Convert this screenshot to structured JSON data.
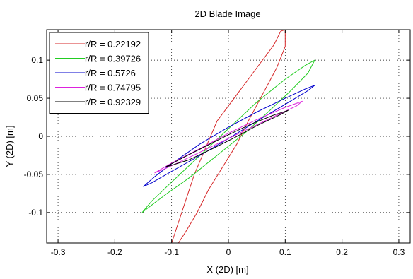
{
  "chart_data": {
    "type": "line",
    "title": "2D Blade Image",
    "xlabel": "X (2D) [m]",
    "ylabel": "Y (2D) [m]",
    "xlim": [
      -0.32,
      0.32
    ],
    "ylim": [
      -0.14,
      0.14
    ],
    "xticks": [
      -0.3,
      -0.2,
      -0.1,
      0,
      0.1,
      0.2,
      0.3
    ],
    "xtick_labels": [
      "-0.3",
      "-0.2",
      "-0.1",
      "0",
      "0.1",
      "0.2",
      "0.3"
    ],
    "yticks": [
      -0.1,
      -0.05,
      0,
      0.05,
      0.1
    ],
    "ytick_labels": [
      "-0.1",
      "-0.05",
      "0",
      "0.05",
      "0.1"
    ],
    "grid": true,
    "legend_position": "top-left",
    "series": [
      {
        "name": "r/R = 0.22192",
        "color": "#d62728",
        "points": [
          [
            -0.1,
            -0.14
          ],
          [
            -0.06,
            -0.05
          ],
          [
            -0.02,
            0.02
          ],
          [
            0.02,
            0.06
          ],
          [
            0.055,
            0.095
          ],
          [
            0.08,
            0.12
          ],
          [
            0.092,
            0.138
          ],
          [
            0.1,
            0.14
          ],
          [
            0.1,
            0.118
          ],
          [
            0.085,
            0.09
          ],
          [
            0.06,
            0.055
          ],
          [
            0.035,
            0.02
          ],
          [
            0.015,
            -0.01
          ],
          [
            -0.01,
            -0.04
          ],
          [
            -0.035,
            -0.07
          ],
          [
            -0.055,
            -0.1
          ],
          [
            -0.075,
            -0.125
          ],
          [
            -0.088,
            -0.14
          ]
        ]
      },
      {
        "name": "r/R = 0.39726",
        "color": "#22cc22",
        "points": [
          [
            -0.152,
            -0.1
          ],
          [
            -0.135,
            -0.085
          ],
          [
            -0.1,
            -0.06
          ],
          [
            -0.05,
            -0.025
          ],
          [
            0,
            0.01
          ],
          [
            0.05,
            0.045
          ],
          [
            0.1,
            0.075
          ],
          [
            0.135,
            0.093
          ],
          [
            0.152,
            0.1
          ],
          [
            0.14,
            0.083
          ],
          [
            0.11,
            0.06
          ],
          [
            0.07,
            0.032
          ],
          [
            0.03,
            0.005
          ],
          [
            -0.02,
            -0.025
          ],
          [
            -0.07,
            -0.055
          ],
          [
            -0.11,
            -0.076
          ],
          [
            -0.14,
            -0.093
          ],
          [
            -0.152,
            -0.1
          ]
        ]
      },
      {
        "name": "r/R = 0.5726",
        "color": "#0000cc",
        "points": [
          [
            -0.15,
            -0.066
          ],
          [
            -0.13,
            -0.053
          ],
          [
            -0.1,
            -0.036
          ],
          [
            -0.05,
            -0.01
          ],
          [
            0,
            0.012
          ],
          [
            0.05,
            0.032
          ],
          [
            0.1,
            0.05
          ],
          [
            0.135,
            0.062
          ],
          [
            0.152,
            0.067
          ],
          [
            0.14,
            0.06
          ],
          [
            0.1,
            0.042
          ],
          [
            0.05,
            0.02
          ],
          [
            0,
            -0.003
          ],
          [
            -0.05,
            -0.025
          ],
          [
            -0.1,
            -0.046
          ],
          [
            -0.135,
            -0.061
          ],
          [
            -0.15,
            -0.066
          ]
        ]
      },
      {
        "name": "r/R = 0.74795",
        "color": "#dd22dd",
        "points": [
          [
            -0.13,
            -0.048
          ],
          [
            -0.1,
            -0.035
          ],
          [
            -0.05,
            -0.016
          ],
          [
            0,
            0.004
          ],
          [
            0.05,
            0.022
          ],
          [
            0.1,
            0.038
          ],
          [
            0.13,
            0.046
          ],
          [
            0.12,
            0.04
          ],
          [
            0.08,
            0.026
          ],
          [
            0.03,
            0.008
          ],
          [
            -0.02,
            -0.01
          ],
          [
            -0.07,
            -0.028
          ],
          [
            -0.11,
            -0.042
          ],
          [
            -0.13,
            -0.048
          ]
        ]
      },
      {
        "name": "r/R = 0.92329",
        "color": "#000000",
        "points": [
          [
            -0.11,
            -0.04
          ],
          [
            -0.08,
            -0.028
          ],
          [
            -0.04,
            -0.013
          ],
          [
            0,
            0.002
          ],
          [
            0.04,
            0.016
          ],
          [
            0.08,
            0.028
          ],
          [
            0.105,
            0.034
          ],
          [
            0.09,
            0.028
          ],
          [
            0.05,
            0.014
          ],
          [
            0.01,
            -0.002
          ],
          [
            -0.03,
            -0.017
          ],
          [
            -0.07,
            -0.031
          ],
          [
            -0.1,
            -0.038
          ],
          [
            -0.11,
            -0.04
          ]
        ]
      }
    ]
  }
}
